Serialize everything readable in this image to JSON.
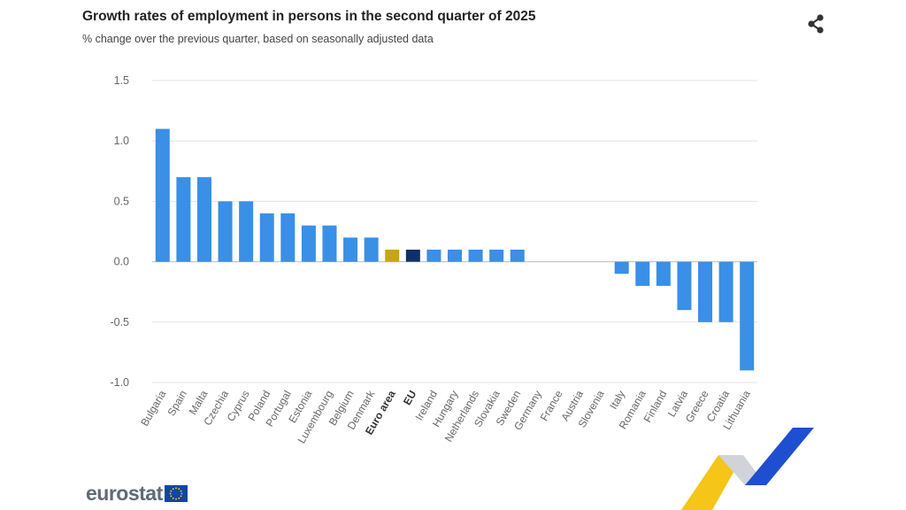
{
  "header": {
    "title": "Growth rates of employment in persons in the second quarter of 2025",
    "subtitle": "% change over the previous quarter, based on seasonally adjusted data"
  },
  "toolbar": {
    "share_icon": "share-icon"
  },
  "footer": {
    "brand": "eurostat",
    "flag_icon": "eu-flag-icon"
  },
  "colors": {
    "country": "#3a8fe6",
    "euro_area": "#c8a418",
    "eu": "#0e2f6b",
    "grid": "#e3e3e3",
    "axis_text": "#666666"
  },
  "chart_data": {
    "type": "bar",
    "title": "Growth rates of employment in persons in the second quarter of 2025",
    "subtitle": "% change over the previous quarter, based on seasonally adjusted data",
    "xlabel": "",
    "ylabel": "",
    "ylim": [
      -1.0,
      1.5
    ],
    "yticks": [
      1.5,
      1.0,
      0.5,
      0.0,
      -0.5,
      -1.0
    ],
    "ytick_labels": [
      "1.5",
      "1.0",
      "0.5",
      "0.0",
      "-0.5",
      "-1.0"
    ],
    "grid": true,
    "categories": [
      "Bulgaria",
      "Spain",
      "Malta",
      "Czechia",
      "Cyprus",
      "Poland",
      "Portugal",
      "Estonia",
      "Luxembourg",
      "Belgium",
      "Denmark",
      "Euro area",
      "EU",
      "Ireland",
      "Hungary",
      "Netherlands",
      "Slovakia",
      "Sweden",
      "Germany",
      "France",
      "Austria",
      "Slovenia",
      "Italy",
      "Romania",
      "Finland",
      "Latvia",
      "Greece",
      "Croatia",
      "Lithuania"
    ],
    "values": [
      1.1,
      0.7,
      0.7,
      0.5,
      0.5,
      0.4,
      0.4,
      0.3,
      0.3,
      0.2,
      0.2,
      0.1,
      0.1,
      0.1,
      0.1,
      0.1,
      0.1,
      0.1,
      0.0,
      0.0,
      0.0,
      0.0,
      -0.1,
      -0.2,
      -0.2,
      -0.4,
      -0.5,
      -0.5,
      -0.9
    ],
    "highlight": {
      "Euro area": "euro_area",
      "EU": "eu"
    },
    "bold_categories": [
      "Euro area",
      "EU"
    ]
  }
}
